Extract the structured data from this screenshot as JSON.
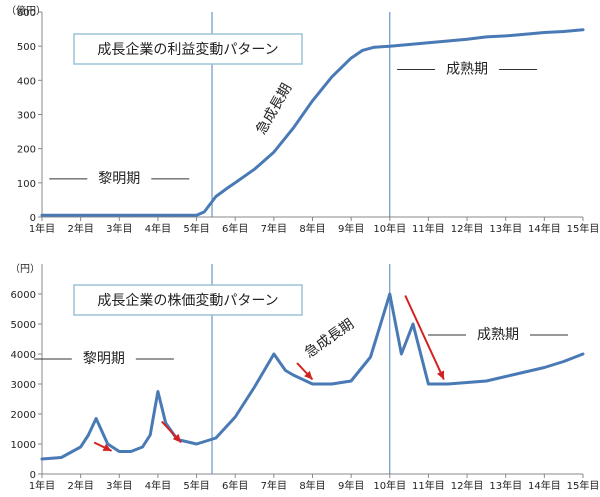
{
  "chart_data": [
    {
      "type": "line",
      "title": "成長企業の利益変動パターン",
      "ylabel": "（億円）",
      "ylim": [
        0,
        600
      ],
      "yticks": [
        0,
        100,
        200,
        300,
        400,
        500,
        600
      ],
      "categories": [
        "1年目",
        "2年目",
        "3年目",
        "4年目",
        "5年目",
        "6年目",
        "7年目",
        "8年目",
        "9年目",
        "10年目",
        "11年目",
        "12年目",
        "13年目",
        "14年目",
        "15年目"
      ],
      "grid": false,
      "series": [
        {
          "x": [
            1,
            2,
            3,
            4,
            5,
            5.2,
            5.5,
            5.8,
            6,
            6.5,
            7,
            7.5,
            8,
            8.5,
            9,
            9.3,
            9.6,
            10,
            10.5,
            11,
            11.5,
            12,
            12.5,
            13,
            13.5,
            14,
            14.5,
            15
          ],
          "y": [
            5,
            5,
            5,
            5,
            5,
            15,
            60,
            85,
            100,
            140,
            190,
            260,
            340,
            410,
            465,
            488,
            497,
            500,
            505,
            510,
            515,
            520,
            527,
            530,
            535,
            540,
            543,
            548
          ]
        }
      ],
      "phases": [
        {
          "label": "黎明期",
          "x": 3,
          "y": 100,
          "rotate": 0
        },
        {
          "label": "急成長期",
          "x": 7.1,
          "y": 310,
          "rotate": -60
        },
        {
          "label": "成熟期",
          "x": 12,
          "y": 420,
          "rotate": 0
        }
      ],
      "dividers": [
        5.4,
        10
      ]
    },
    {
      "type": "line",
      "title": "成長企業の株価変動パターン",
      "ylabel": "（円）",
      "ylim": [
        0,
        7000
      ],
      "yticks": [
        0,
        1000,
        2000,
        3000,
        4000,
        5000,
        6000
      ],
      "categories": [
        "1年目",
        "2年目",
        "3年目",
        "4年目",
        "5年目",
        "6年目",
        "7年目",
        "8年目",
        "9年目",
        "10年目",
        "11年目",
        "12年目",
        "13年目",
        "14年目",
        "15年目"
      ],
      "grid": false,
      "series": [
        {
          "x": [
            1,
            1.5,
            2,
            2.2,
            2.4,
            2.7,
            3,
            3.3,
            3.6,
            3.8,
            4,
            4.2,
            4.5,
            5,
            5.5,
            6,
            6.5,
            7,
            7.3,
            7.5,
            8,
            8.5,
            9,
            9.5,
            10,
            10.3,
            10.6,
            11,
            11.5,
            12,
            12.5,
            13,
            13.5,
            14,
            14.5,
            15
          ],
          "y": [
            500,
            550,
            900,
            1300,
            1850,
            1000,
            750,
            750,
            900,
            1300,
            2750,
            1700,
            1150,
            1000,
            1200,
            1900,
            2900,
            4000,
            3450,
            3300,
            3000,
            3000,
            3100,
            3900,
            6000,
            4000,
            5000,
            3000,
            3000,
            3050,
            3100,
            3250,
            3400,
            3550,
            3750,
            4000
          ]
        }
      ],
      "phases": [
        {
          "label": "黎明期",
          "x": 2.6,
          "y": 3700,
          "rotate": 0
        },
        {
          "label": "急成長期",
          "x": 8.5,
          "y": 4400,
          "rotate": -35
        },
        {
          "label": "成熟期",
          "x": 12.8,
          "y": 4500,
          "rotate": 0
        }
      ],
      "dividers": [
        5.4,
        10
      ]
    }
  ]
}
